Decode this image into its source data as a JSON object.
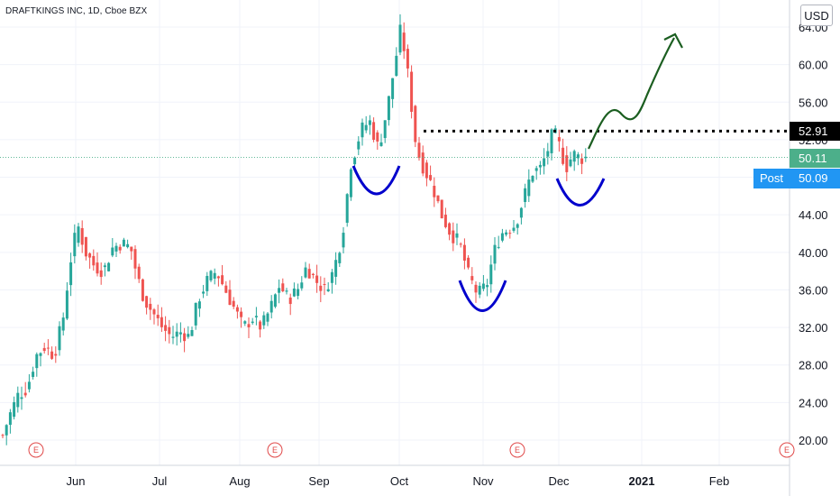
{
  "header": {
    "symbol": "DRAFTKINGS INC, 1D, Cboe BZX",
    "currency": "USD"
  },
  "price_tags": {
    "level": "52.91",
    "last": "50.11",
    "post_label": "Post",
    "post_price": "50.09"
  },
  "colors": {
    "up": "#26a69a",
    "down": "#ef5350",
    "dotted_line": "#000000",
    "pattern_arc": "#0000cc",
    "projection_arrow": "#1b5e20",
    "last_price_bg": "#4caf8a",
    "post_bg": "#2196f3",
    "level_bg": "#000000",
    "earnings": "#e04848"
  },
  "chart_data": {
    "type": "candlestick",
    "y_ticks": [
      "20.00",
      "24.00",
      "28.00",
      "32.00",
      "36.00",
      "40.00",
      "44.00",
      "48.00",
      "52.00",
      "56.00",
      "60.00",
      "64.00"
    ],
    "ylim": [
      18.3,
      66.3
    ],
    "x_ticks": [
      "Jun",
      "Jul",
      "Aug",
      "Sep",
      "Oct",
      "Nov",
      "Dec",
      "2021",
      "Feb"
    ],
    "earnings_marker": "E",
    "horizontal_level": 52.91,
    "last_price": 50.11,
    "post_market_price": 50.09,
    "approx_close_path": [
      {
        "month": "May",
        "approx_range": [
          20,
          32
        ]
      },
      {
        "month": "Jun",
        "approx_range": [
          36,
          44
        ]
      },
      {
        "month": "Jul",
        "approx_range": [
          29,
          40
        ]
      },
      {
        "month": "Aug",
        "approx_range": [
          31,
          40
        ]
      },
      {
        "month": "Sep",
        "approx_range": [
          35,
          56
        ]
      },
      {
        "month": "Oct",
        "approx_range": [
          50,
          64
        ]
      },
      {
        "month": "Nov",
        "approx_range": [
          35,
          48
        ]
      },
      {
        "month": "Dec",
        "approx_range": [
          47,
          53
        ]
      }
    ],
    "annotations": [
      "inverse head and shoulders (three blue arcs)",
      "dotted neckline at 52.91",
      "green projection arrow upward"
    ]
  }
}
